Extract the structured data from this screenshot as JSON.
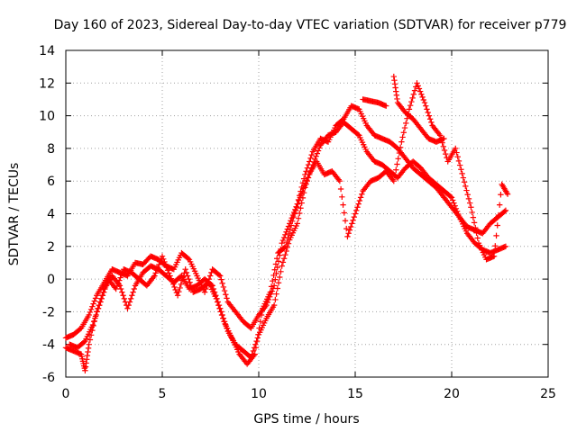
{
  "chart_data": {
    "type": "scatter",
    "title": "Day 160 of 2023, Sidereal Day-to-day VTEC variation (SDTVAR) for receiver p779",
    "xlabel": "GPS time / hours",
    "ylabel": "SDTVAR / TECUs",
    "xlim": [
      0,
      25
    ],
    "ylim": [
      -6,
      14
    ],
    "xticks": [
      0,
      5,
      10,
      15,
      20,
      25
    ],
    "xtick_labels": [
      "0",
      "5",
      "10",
      "15",
      "20",
      "25"
    ],
    "yticks": [
      -6,
      -4,
      -2,
      0,
      2,
      4,
      6,
      8,
      10,
      12,
      14
    ],
    "ytick_labels": [
      "-6",
      "-4",
      "-2",
      "0",
      "2",
      "4",
      "6",
      "8",
      "10",
      "12",
      "14"
    ],
    "grid": true,
    "marker": "plus",
    "color": "#ff0000",
    "series": [
      {
        "name": "trace-1",
        "points": [
          [
            0.0,
            -3.6
          ],
          [
            0.4,
            -3.4
          ],
          [
            0.8,
            -3.0
          ],
          [
            1.2,
            -2.2
          ],
          [
            1.6,
            -1.0
          ],
          [
            2.0,
            -0.2
          ],
          [
            2.4,
            0.6
          ],
          [
            2.8,
            0.4
          ],
          [
            3.2,
            0.2
          ],
          [
            3.6,
            1.0
          ],
          [
            4.0,
            0.9
          ],
          [
            4.4,
            1.4
          ],
          [
            4.8,
            1.2
          ],
          [
            5.2,
            0.8
          ],
          [
            5.6,
            0.6
          ],
          [
            6.0,
            1.6
          ],
          [
            6.4,
            1.2
          ],
          [
            6.8,
            0.2
          ],
          [
            7.2,
            -0.8
          ],
          [
            7.6,
            0.6
          ],
          [
            8.0,
            0.2
          ],
          [
            8.4,
            -1.4
          ],
          [
            8.8,
            -2.0
          ],
          [
            9.2,
            -2.6
          ],
          [
            9.6,
            -3.0
          ],
          [
            10.0,
            -2.2
          ],
          [
            10.4,
            -1.6
          ],
          [
            10.8,
            -0.4
          ],
          [
            11.2,
            2.2
          ],
          [
            11.6,
            3.4
          ],
          [
            12.0,
            4.6
          ],
          [
            12.4,
            6.4
          ],
          [
            12.8,
            7.8
          ],
          [
            13.2,
            8.6
          ],
          [
            13.6,
            8.4
          ],
          [
            14.0,
            9.4
          ],
          [
            14.4,
            9.8
          ],
          [
            14.8,
            10.6
          ],
          [
            15.2,
            10.4
          ],
          [
            15.6,
            9.4
          ],
          [
            16.0,
            8.8
          ],
          [
            16.4,
            8.6
          ],
          [
            16.8,
            8.4
          ],
          [
            17.2,
            8.0
          ],
          [
            17.6,
            7.4
          ],
          [
            18.0,
            6.8
          ],
          [
            18.4,
            6.4
          ],
          [
            18.8,
            6.0
          ],
          [
            19.2,
            5.6
          ],
          [
            19.6,
            5.0
          ],
          [
            20.0,
            4.4
          ],
          [
            20.4,
            3.8
          ],
          [
            20.8,
            3.2
          ],
          [
            21.2,
            3.0
          ],
          [
            21.6,
            2.8
          ],
          [
            22.0,
            3.4
          ],
          [
            22.4,
            3.8
          ],
          [
            22.8,
            4.2
          ]
        ]
      },
      {
        "name": "trace-2",
        "points": [
          [
            0.0,
            -4.2
          ],
          [
            0.4,
            -4.4
          ],
          [
            0.8,
            -4.6
          ],
          [
            1.0,
            -5.6
          ],
          [
            1.2,
            -4.0
          ],
          [
            1.6,
            -2.0
          ],
          [
            2.0,
            -0.6
          ],
          [
            2.4,
            0.2
          ],
          [
            2.8,
            -0.4
          ],
          [
            3.2,
            -1.8
          ],
          [
            3.6,
            -0.4
          ],
          [
            4.0,
            0.4
          ],
          [
            4.4,
            0.8
          ],
          [
            4.8,
            0.6
          ],
          [
            5.2,
            0.2
          ],
          [
            5.6,
            -0.2
          ],
          [
            6.0,
            0.2
          ],
          [
            6.4,
            -0.6
          ],
          [
            6.8,
            -0.4
          ],
          [
            7.2,
            0.0
          ],
          [
            7.6,
            -0.4
          ],
          [
            8.0,
            -1.8
          ],
          [
            8.4,
            -3.2
          ],
          [
            8.8,
            -4.0
          ],
          [
            9.2,
            -4.4
          ],
          [
            9.6,
            -4.8
          ],
          [
            10.0,
            -3.4
          ],
          [
            10.4,
            -2.4
          ],
          [
            10.8,
            -1.6
          ],
          [
            11.2,
            0.8
          ],
          [
            11.6,
            2.4
          ],
          [
            12.0,
            3.4
          ],
          [
            12.4,
            5.6
          ],
          [
            12.8,
            7.0
          ],
          [
            13.2,
            8.2
          ],
          [
            13.6,
            8.8
          ],
          [
            14.0,
            9.0
          ],
          [
            14.4,
            9.6
          ],
          [
            14.8,
            9.2
          ],
          [
            15.2,
            8.8
          ],
          [
            15.6,
            7.8
          ],
          [
            16.0,
            7.2
          ],
          [
            16.4,
            7.0
          ],
          [
            16.8,
            6.6
          ],
          [
            17.2,
            6.2
          ],
          [
            17.6,
            6.8
          ],
          [
            18.0,
            7.2
          ],
          [
            18.4,
            6.8
          ],
          [
            18.8,
            6.2
          ],
          [
            19.2,
            5.8
          ],
          [
            19.6,
            5.4
          ],
          [
            20.0,
            5.0
          ],
          [
            20.4,
            3.8
          ],
          [
            20.8,
            2.8
          ],
          [
            21.2,
            2.2
          ],
          [
            21.6,
            1.8
          ],
          [
            22.0,
            1.6
          ],
          [
            22.4,
            1.8
          ],
          [
            22.8,
            2.0
          ]
        ]
      },
      {
        "name": "trace-3",
        "points": [
          [
            0.2,
            -4.0
          ],
          [
            0.6,
            -4.2
          ],
          [
            1.0,
            -3.8
          ],
          [
            1.4,
            -2.8
          ],
          [
            1.8,
            -1.4
          ],
          [
            2.2,
            0.0
          ],
          [
            2.6,
            -0.6
          ],
          [
            3.0,
            0.6
          ],
          [
            3.4,
            0.4
          ],
          [
            3.8,
            0.0
          ],
          [
            4.2,
            -0.4
          ],
          [
            4.6,
            0.2
          ],
          [
            5.0,
            1.4
          ],
          [
            5.4,
            0.2
          ],
          [
            5.8,
            -1.0
          ],
          [
            6.2,
            0.6
          ],
          [
            6.6,
            -0.8
          ],
          [
            7.0,
            -0.6
          ],
          [
            7.4,
            -0.2
          ],
          [
            7.8,
            -1.2
          ],
          [
            8.2,
            -2.6
          ],
          [
            8.6,
            -3.6
          ],
          [
            9.0,
            -4.6
          ],
          [
            9.4,
            -5.2
          ],
          [
            9.8,
            -4.6
          ],
          [
            10.2,
            -1.8
          ],
          [
            10.6,
            -0.8
          ],
          [
            11.0,
            1.6
          ],
          [
            11.4,
            2.0
          ],
          [
            11.8,
            3.8
          ],
          [
            12.2,
            5.2
          ],
          [
            12.6,
            6.4
          ],
          [
            13.0,
            7.2
          ],
          [
            13.4,
            6.4
          ],
          [
            13.8,
            6.6
          ],
          [
            14.2,
            6.0
          ],
          [
            14.6,
            2.6
          ],
          [
            15.0,
            4.0
          ],
          [
            15.4,
            5.4
          ],
          [
            15.8,
            6.0
          ],
          [
            16.2,
            6.2
          ],
          [
            16.6,
            6.6
          ],
          [
            17.0,
            6.0
          ],
          [
            17.4,
            8.4
          ],
          [
            17.8,
            10.4
          ],
          [
            18.2,
            12.0
          ],
          [
            18.6,
            10.8
          ],
          [
            19.0,
            9.4
          ],
          [
            19.4,
            8.8
          ],
          [
            19.8,
            7.2
          ],
          [
            20.2,
            8.0
          ],
          [
            20.6,
            6.2
          ],
          [
            21.0,
            4.4
          ],
          [
            21.4,
            2.2
          ],
          [
            21.8,
            1.2
          ],
          [
            22.2,
            1.4
          ],
          [
            22.6,
            5.8
          ],
          [
            22.9,
            5.2
          ]
        ]
      },
      {
        "name": "trace-4",
        "points": [
          [
            17.0,
            12.4
          ],
          [
            17.2,
            10.8
          ],
          [
            17.6,
            10.2
          ],
          [
            18.0,
            9.8
          ],
          [
            18.4,
            9.2
          ],
          [
            18.8,
            8.6
          ],
          [
            19.2,
            8.4
          ],
          [
            19.6,
            8.6
          ],
          [
            16.6,
            10.6
          ],
          [
            16.2,
            10.8
          ],
          [
            15.8,
            10.9
          ],
          [
            15.4,
            11.0
          ]
        ]
      }
    ]
  }
}
